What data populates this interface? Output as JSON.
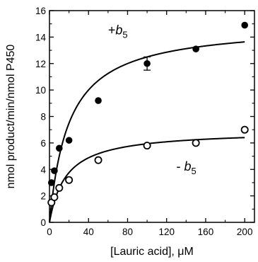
{
  "chart_data": {
    "type": "scatter",
    "title": "",
    "xlabel_prefix": "[Lauric acid], ",
    "xlabel_unit": "μM",
    "ylabel": "nmol product/min/nmol P450",
    "xlim": [
      0,
      210
    ],
    "ylim": [
      0,
      16
    ],
    "x_ticks": [
      0,
      40,
      80,
      120,
      160,
      200
    ],
    "y_ticks": [
      0,
      2,
      4,
      6,
      8,
      10,
      12,
      14,
      16
    ],
    "grid": false,
    "legend": "none",
    "series": [
      {
        "name": "+b5",
        "marker": "filled-circle",
        "color": "#000000",
        "points": [
          {
            "x": 2,
            "y": 3.0
          },
          {
            "x": 5,
            "y": 3.9
          },
          {
            "x": 10,
            "y": 5.6
          },
          {
            "x": 20,
            "y": 6.2
          },
          {
            "x": 50,
            "y": 9.2
          },
          {
            "x": 100,
            "y": 12.0,
            "err": 0.5
          },
          {
            "x": 150,
            "y": 13.1
          },
          {
            "x": 200,
            "y": 14.9
          }
        ],
        "fit": {
          "model": "michaelis-menten",
          "vmax": 15.0,
          "km": 20.0
        }
      },
      {
        "name": "- b5",
        "marker": "open-circle",
        "color": "#000000",
        "points": [
          {
            "x": 2,
            "y": 1.5
          },
          {
            "x": 5,
            "y": 1.9
          },
          {
            "x": 10,
            "y": 2.6
          },
          {
            "x": 20,
            "y": 3.2
          },
          {
            "x": 50,
            "y": 4.7
          },
          {
            "x": 100,
            "y": 5.8
          },
          {
            "x": 150,
            "y": 6.0
          },
          {
            "x": 200,
            "y": 7.0
          }
        ],
        "fit": {
          "model": "michaelis-menten",
          "vmax": 6.95,
          "km": 17.0
        }
      }
    ],
    "annotations": [
      {
        "prefix": "+",
        "italic": "b",
        "sub": "5",
        "series": 0
      },
      {
        "prefix": "- ",
        "italic": "b",
        "sub": "5",
        "series": 1
      }
    ]
  }
}
